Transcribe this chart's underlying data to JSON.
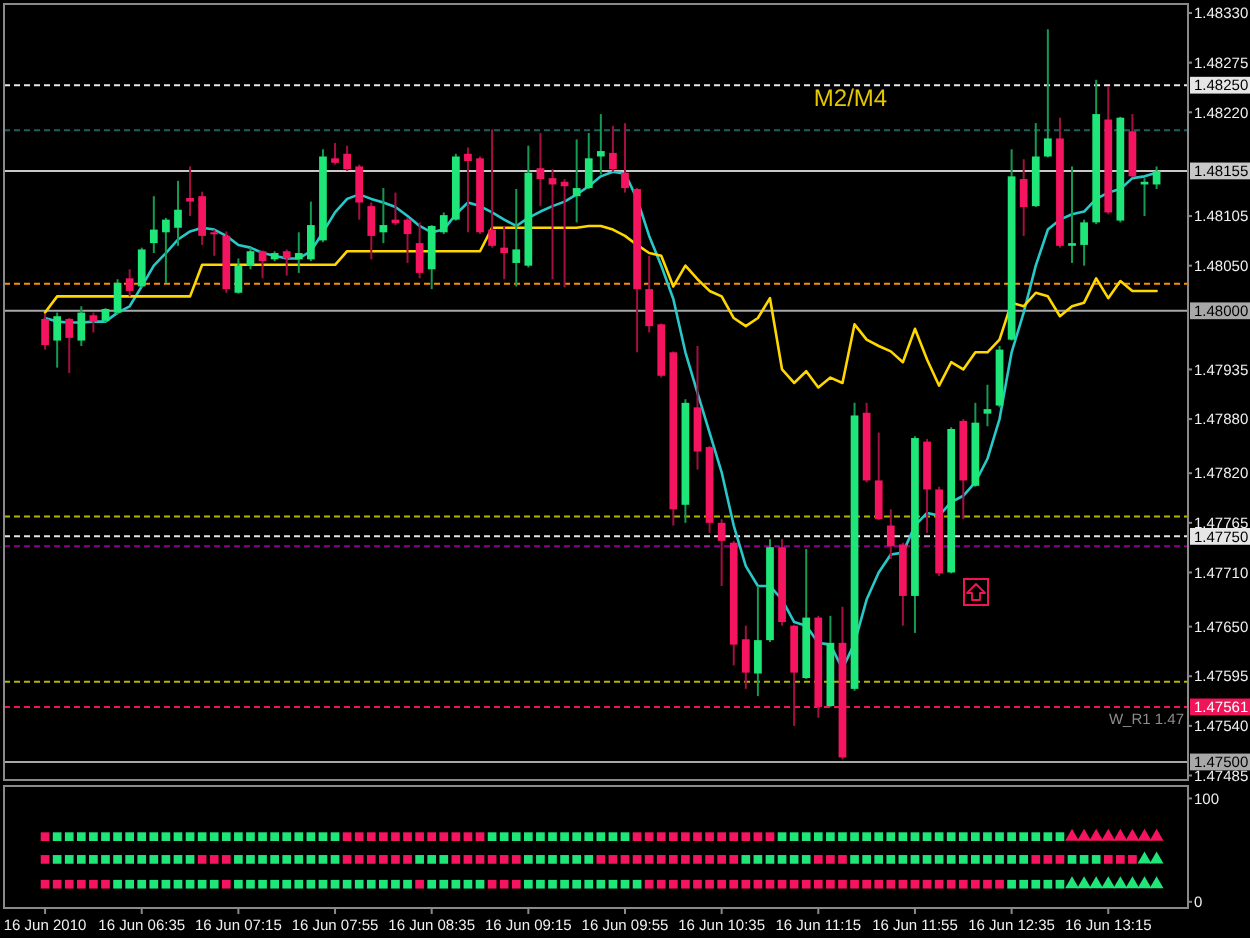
{
  "chart_data": [
    {
      "type": "candlestick",
      "annotations": [
        "M2/M4",
        {
          "text": "W_R1 1.47",
          "y": 1.47561
        }
      ],
      "x": [
        "2010-06-16T05:55",
        "2010-06-16T06:00",
        "2010-06-16T06:05",
        "2010-06-16T06:10",
        "2010-06-16T06:15",
        "2010-06-16T06:20",
        "2010-06-16T06:25",
        "2010-06-16T06:30",
        "2010-06-16T06:35",
        "2010-06-16T06:40",
        "2010-06-16T06:45",
        "2010-06-16T06:50",
        "2010-06-16T06:55",
        "2010-06-16T07:00",
        "2010-06-16T07:05",
        "2010-06-16T07:10",
        "2010-06-16T07:15",
        "2010-06-16T07:20",
        "2010-06-16T07:25",
        "2010-06-16T07:30",
        "2010-06-16T07:35",
        "2010-06-16T07:40",
        "2010-06-16T07:45",
        "2010-06-16T07:50",
        "2010-06-16T07:55",
        "2010-06-16T08:00",
        "2010-06-16T08:05",
        "2010-06-16T08:10",
        "2010-06-16T08:15",
        "2010-06-16T08:20",
        "2010-06-16T08:25",
        "2010-06-16T08:30",
        "2010-06-16T08:35",
        "2010-06-16T08:40",
        "2010-06-16T08:45",
        "2010-06-16T08:50",
        "2010-06-16T08:55",
        "2010-06-16T09:00",
        "2010-06-16T09:05",
        "2010-06-16T09:10",
        "2010-06-16T09:15",
        "2010-06-16T09:20",
        "2010-06-16T09:25",
        "2010-06-16T09:30",
        "2010-06-16T09:35",
        "2010-06-16T09:40",
        "2010-06-16T09:45",
        "2010-06-16T09:50",
        "2010-06-16T09:55",
        "2010-06-16T10:00",
        "2010-06-16T10:05",
        "2010-06-16T10:10",
        "2010-06-16T10:15",
        "2010-06-16T10:20",
        "2010-06-16T10:25",
        "2010-06-16T10:30",
        "2010-06-16T10:35",
        "2010-06-16T10:40",
        "2010-06-16T10:45",
        "2010-06-16T10:50",
        "2010-06-16T10:55",
        "2010-06-16T11:00",
        "2010-06-16T11:05",
        "2010-06-16T11:10",
        "2010-06-16T11:15",
        "2010-06-16T11:20",
        "2010-06-16T11:25",
        "2010-06-16T11:30",
        "2010-06-16T11:35",
        "2010-06-16T11:40",
        "2010-06-16T11:45",
        "2010-06-16T11:50",
        "2010-06-16T11:55",
        "2010-06-16T12:00",
        "2010-06-16T12:05",
        "2010-06-16T12:10",
        "2010-06-16T12:15",
        "2010-06-16T12:20",
        "2010-06-16T12:25",
        "2010-06-16T12:30",
        "2010-06-16T12:35",
        "2010-06-16T12:40",
        "2010-06-16T12:45",
        "2010-06-16T12:50",
        "2010-06-16T12:55",
        "2010-06-16T13:00",
        "2010-06-16T13:05",
        "2010-06-16T13:10",
        "2010-06-16T13:15",
        "2010-06-16T13:20",
        "2010-06-16T13:25",
        "2010-06-16T13:30",
        "2010-06-16T13:35"
      ],
      "ohlc": [
        [
          1.47991,
          1.47997,
          1.47957,
          1.47962
        ],
        [
          1.47967,
          1.47998,
          1.47937,
          1.47994
        ],
        [
          1.47991,
          1.47992,
          1.47931,
          1.4797
        ],
        [
          1.47967,
          1.48005,
          1.47961,
          1.47998
        ],
        [
          1.47995,
          1.47998,
          1.47976,
          1.47988
        ],
        [
          1.47989,
          1.48003,
          1.47987,
          1.48002
        ],
        [
          1.47998,
          1.48035,
          1.47996,
          1.48031
        ],
        [
          1.48036,
          1.48046,
          1.48016,
          1.48022
        ],
        [
          1.48027,
          1.4807,
          1.48026,
          1.48068
        ],
        [
          1.48075,
          1.48127,
          1.48064,
          1.4809
        ],
        [
          1.48087,
          1.48103,
          1.48031,
          1.48101
        ],
        [
          1.48092,
          1.48144,
          1.48072,
          1.48112
        ],
        [
          1.48125,
          1.4816,
          1.48105,
          1.48121
        ],
        [
          1.48127,
          1.48132,
          1.48073,
          1.48083
        ],
        [
          1.48087,
          1.4809,
          1.48061,
          1.48085
        ],
        [
          1.48083,
          1.48088,
          1.4802,
          1.48024
        ],
        [
          1.4802,
          1.48058,
          1.48019,
          1.4805
        ],
        [
          1.4805,
          1.4807,
          1.48046,
          1.48066
        ],
        [
          1.48066,
          1.48067,
          1.48036,
          1.48055
        ],
        [
          1.48057,
          1.48066,
          1.48055,
          1.48064
        ],
        [
          1.48066,
          1.48068,
          1.48039,
          1.48058
        ],
        [
          1.48057,
          1.48087,
          1.48042,
          1.48064
        ],
        [
          1.48057,
          1.48121,
          1.48055,
          1.48095
        ],
        [
          1.48078,
          1.48179,
          1.48076,
          1.48171
        ],
        [
          1.48169,
          1.48186,
          1.48162,
          1.48164
        ],
        [
          1.48174,
          1.48183,
          1.48155,
          1.48157
        ],
        [
          1.4816,
          1.48162,
          1.48101,
          1.4812
        ],
        [
          1.48116,
          1.4812,
          1.48057,
          1.48083
        ],
        [
          1.48087,
          1.48136,
          1.48075,
          1.48095
        ],
        [
          1.48101,
          1.48131,
          1.48095,
          1.48097
        ],
        [
          1.48101,
          1.48103,
          1.48053,
          1.48085
        ],
        [
          1.48075,
          1.48098,
          1.48036,
          1.48042
        ],
        [
          1.48046,
          1.48095,
          1.48024,
          1.48094
        ],
        [
          1.48087,
          1.48109,
          1.48085,
          1.48106
        ],
        [
          1.48101,
          1.48174,
          1.481,
          1.48171
        ],
        [
          1.48174,
          1.48181,
          1.48087,
          1.48166
        ],
        [
          1.48169,
          1.48171,
          1.48085,
          1.48087
        ],
        [
          1.4809,
          1.48201,
          1.4807,
          1.48072
        ],
        [
          1.4807,
          1.48094,
          1.48035,
          1.48064
        ],
        [
          1.48053,
          1.48135,
          1.48027,
          1.48068
        ],
        [
          1.4805,
          1.48183,
          1.48048,
          1.48153
        ],
        [
          1.48158,
          1.48197,
          1.48116,
          1.48146
        ],
        [
          1.48147,
          1.48157,
          1.48035,
          1.4814
        ],
        [
          1.48143,
          1.48146,
          1.48026,
          1.48138
        ],
        [
          1.48127,
          1.4819,
          1.48098,
          1.48136
        ],
        [
          1.48136,
          1.48197,
          1.48135,
          1.48169
        ],
        [
          1.48171,
          1.48218,
          1.48151,
          1.48177
        ],
        [
          1.48175,
          1.48205,
          1.48154,
          1.48157
        ],
        [
          1.48153,
          1.48208,
          1.48131,
          1.48136
        ],
        [
          1.48135,
          1.48136,
          1.47954,
          1.48024
        ],
        [
          1.48024,
          1.48061,
          1.47976,
          1.47983
        ],
        [
          1.47985,
          1.47986,
          1.47926,
          1.47928
        ],
        [
          1.47954,
          1.47955,
          1.47762,
          1.4778
        ],
        [
          1.47785,
          1.47902,
          1.47765,
          1.47898
        ],
        [
          1.47893,
          1.47961,
          1.47824,
          1.47844
        ],
        [
          1.47849,
          1.4785,
          1.47754,
          1.47765
        ],
        [
          1.47765,
          1.47769,
          1.47695,
          1.47745
        ],
        [
          1.47743,
          1.47745,
          1.47607,
          1.4763
        ],
        [
          1.47636,
          1.47651,
          1.47581,
          1.47599
        ],
        [
          1.47598,
          1.47695,
          1.47573,
          1.47635
        ],
        [
          1.47635,
          1.47747,
          1.47633,
          1.47738
        ],
        [
          1.47738,
          1.47747,
          1.47651,
          1.47655
        ],
        [
          1.47651,
          1.47652,
          1.4754,
          1.47599
        ],
        [
          1.47593,
          1.47736,
          1.47592,
          1.4766
        ],
        [
          1.4766,
          1.47662,
          1.47549,
          1.47561
        ],
        [
          1.47562,
          1.47662,
          1.47561,
          1.47632
        ],
        [
          1.47632,
          1.47672,
          1.47503,
          1.47505
        ],
        [
          1.47581,
          1.47898,
          1.47579,
          1.47884
        ],
        [
          1.47887,
          1.47898,
          1.4781,
          1.47812
        ],
        [
          1.47812,
          1.47865,
          1.47768,
          1.47769
        ],
        [
          1.47762,
          1.4778,
          1.47725,
          1.47739
        ],
        [
          1.47741,
          1.47743,
          1.47651,
          1.47684
        ],
        [
          1.47684,
          1.47861,
          1.47643,
          1.47859
        ],
        [
          1.47855,
          1.47858,
          1.47754,
          1.47802
        ],
        [
          1.47802,
          1.47805,
          1.47706,
          1.47709
        ],
        [
          1.4771,
          1.47871,
          1.47709,
          1.47869
        ],
        [
          1.47878,
          1.4788,
          1.47769,
          1.47812
        ],
        [
          1.47806,
          1.47898,
          1.47805,
          1.47876
        ],
        [
          1.47886,
          1.47918,
          1.47872,
          1.47891
        ],
        [
          1.47895,
          1.47961,
          1.47893,
          1.47957
        ],
        [
          1.47968,
          1.48179,
          1.47967,
          1.48149
        ],
        [
          1.48146,
          1.48168,
          1.48083,
          1.48115
        ],
        [
          1.48116,
          1.48208,
          1.48115,
          1.48171
        ],
        [
          1.48171,
          1.48312,
          1.4817,
          1.48191
        ],
        [
          1.48191,
          1.48214,
          1.4807,
          1.48072
        ],
        [
          1.48072,
          1.4816,
          1.48053,
          1.48075
        ],
        [
          1.48073,
          1.48101,
          1.4805,
          1.48098
        ],
        [
          1.48098,
          1.48256,
          1.48096,
          1.48218
        ],
        [
          1.48212,
          1.48249,
          1.48107,
          1.48109
        ],
        [
          1.481,
          1.48215,
          1.48098,
          1.48214
        ],
        [
          1.48199,
          1.48218,
          1.48148,
          1.48149
        ],
        [
          1.4814,
          1.48147,
          1.48105,
          1.48143
        ],
        [
          1.4814,
          1.4816,
          1.48135,
          1.48155
        ]
      ],
      "colors": [
        "#f51460",
        "#1ee678",
        "#f51460",
        "#1ee678",
        "#f51460",
        "#1ee678",
        "#1ee678",
        "#f51460",
        "#1ee678",
        "#1ee678",
        "#1ee678",
        "#1ee678",
        "#f51460",
        "#f51460",
        "#f51460",
        "#f51460",
        "#1ee678",
        "#1ee678",
        "#f51460",
        "#1ee678",
        "#f51460",
        "#1ee678",
        "#1ee678",
        "#1ee678",
        "#f51460",
        "#f51460",
        "#f51460",
        "#f51460",
        "#1ee678",
        "#f51460",
        "#f51460",
        "#f51460",
        "#1ee678",
        "#1ee678",
        "#1ee678",
        "#f51460",
        "#f51460",
        "#f51460",
        "#f51460",
        "#1ee678",
        "#1ee678",
        "#f51460",
        "#f51460",
        "#f51460",
        "#1ee678",
        "#1ee678",
        "#1ee678",
        "#f51460",
        "#f51460",
        "#f51460",
        "#f51460",
        "#f51460",
        "#f51460",
        "#1ee678",
        "#f51460",
        "#f51460",
        "#f51460",
        "#f51460",
        "#f51460",
        "#1ee678",
        "#1ee678",
        "#f51460",
        "#f51460",
        "#1ee678",
        "#f51460",
        "#1ee678",
        "#f51460",
        "#1ee678",
        "#f51460",
        "#f51460",
        "#f51460",
        "#f51460",
        "#1ee678",
        "#f51460",
        "#f51460",
        "#1ee678",
        "#f51460",
        "#1ee678",
        "#1ee678",
        "#1ee678",
        "#1ee678",
        "#f51460",
        "#1ee678",
        "#1ee678",
        "#f51460",
        "#1ee678",
        "#1ee678",
        "#1ee678",
        "#f51460",
        "#1ee678",
        "#f51460",
        "#1ee678",
        "#1ee678"
      ],
      "series": [
        {
          "type": "line",
          "color": "#28c8c8",
          "values": [
            1.47992,
            1.47988,
            1.47987,
            1.47987,
            1.47988,
            1.47988,
            1.47998,
            1.48005,
            1.48027,
            1.4805,
            1.48064,
            1.48079,
            1.48088,
            1.48092,
            1.4809,
            1.48083,
            1.48073,
            1.4807,
            1.48064,
            1.48061,
            1.48058,
            1.48058,
            1.48066,
            1.48087,
            1.48109,
            1.48124,
            1.48129,
            1.48124,
            1.4812,
            1.48115,
            1.48105,
            1.48094,
            1.48087,
            1.4809,
            1.48107,
            1.4812,
            1.48116,
            1.48109,
            1.48101,
            1.48094,
            1.48103,
            1.4811,
            1.48116,
            1.48121,
            1.48129,
            1.48138,
            1.48149,
            1.48154,
            1.48152,
            1.48124,
            1.48083,
            1.4805,
            1.48013,
            1.47954,
            1.47909,
            1.47865,
            1.47821,
            1.47762,
            1.47717,
            1.47695,
            1.47695,
            1.4768,
            1.47655,
            1.47651,
            1.47632,
            1.4763,
            1.47603,
            1.47632,
            1.4768,
            1.4771,
            1.4773,
            1.47732,
            1.47762,
            1.47776,
            1.47773,
            1.47788,
            1.47795,
            1.4781,
            1.47836,
            1.4788,
            1.47954,
            1.47998,
            1.4805,
            1.4809,
            1.48101,
            1.48107,
            1.4811,
            1.48124,
            1.48131,
            1.48135,
            1.48147,
            1.48149,
            1.48153
          ]
        },
        {
          "type": "line",
          "color": "#ffd700",
          "values": [
            1.47998,
            1.48016,
            1.48016,
            1.48016,
            1.48016,
            1.48016,
            1.48016,
            1.48016,
            1.48016,
            1.48016,
            1.48016,
            1.48016,
            1.48016,
            1.48051,
            1.48051,
            1.48051,
            1.48051,
            1.48051,
            1.48051,
            1.48051,
            1.48051,
            1.48051,
            1.48051,
            1.48051,
            1.48051,
            1.48066,
            1.48066,
            1.48066,
            1.48066,
            1.48066,
            1.48066,
            1.48066,
            1.48066,
            1.48066,
            1.48066,
            1.48066,
            1.48066,
            1.48092,
            1.48092,
            1.48092,
            1.48092,
            1.48092,
            1.48092,
            1.48092,
            1.48092,
            1.48094,
            1.48094,
            1.4809,
            1.48083,
            1.48073,
            1.48064,
            1.48061,
            1.48027,
            1.4805,
            1.48035,
            1.48022,
            1.48016,
            1.47992,
            1.47983,
            1.47992,
            1.48014,
            1.47935,
            1.4792,
            1.47933,
            1.47915,
            1.47926,
            1.4792,
            1.47985,
            1.47968,
            1.47961,
            1.47955,
            1.47943,
            1.4798,
            1.47946,
            1.47917,
            1.47943,
            1.47935,
            1.47954,
            1.47954,
            1.47968,
            1.48009,
            1.48005,
            1.4802,
            1.48016,
            1.47994,
            1.48005,
            1.48009,
            1.48036,
            1.48014,
            1.48033,
            1.48022,
            1.48022,
            1.48022
          ]
        }
      ],
      "xlim": [
        "2010-06-16T05:38",
        "2010-06-16T13:48"
      ],
      "ylim": [
        1.4748,
        1.4834
      ],
      "yticks": [
        {
          "value": 1.4833,
          "label": "1.48330"
        },
        1.48275,
        {
          "value": 1.4822,
          "label": "1.48220"
        },
        1.48105,
        {
          "value": 1.4805,
          "label": "1.48050"
        },
        1.47935,
        {
          "value": 1.4788,
          "label": "1.47880"
        },
        {
          "value": 1.4782,
          "label": "1.47820"
        },
        1.47765,
        {
          "value": 1.4771,
          "label": "1.47710"
        },
        {
          "value": 1.4765,
          "label": "1.47650"
        },
        1.47595,
        {
          "value": 1.4754,
          "label": "1.47540"
        },
        1.47485
      ],
      "tick_labels": "y",
      "ref_lines": [
        {
          "axis": "y",
          "value": 1.4825,
          "label": "1.48250",
          "color": "#e6e6e6",
          "line_style": "dashed"
        },
        {
          "axis": "y",
          "value": 1.482,
          "color": "#1f5f5f",
          "line_style": "dashed"
        },
        {
          "axis": "y",
          "value": 1.48155,
          "label": "1.48155",
          "color": "#c8c8c8",
          "line_style": "solid"
        },
        {
          "axis": "y",
          "value": 1.4803,
          "color": "#ff8c00",
          "line_style": "dashed"
        },
        {
          "axis": "y",
          "value": 1.48,
          "label": "1.48000",
          "color": "#a8a8a8",
          "line_style": "solid"
        },
        {
          "axis": "y",
          "value": 1.47772,
          "color": "#b4b400",
          "line_style": "dashed"
        },
        {
          "axis": "y",
          "value": 1.4775,
          "label": "1.47750",
          "color": "#e6e6e6",
          "line_style": "dashed"
        },
        {
          "axis": "y",
          "value": 1.47739,
          "color": "#8c008c",
          "line_style": "dashed"
        },
        {
          "axis": "y",
          "value": 1.47589,
          "color": "#b4b400",
          "line_style": "dashed"
        },
        {
          "axis": "y",
          "value": 1.47561,
          "label": "1.47561",
          "color": "#f0145a",
          "line_style": "dashed"
        },
        {
          "axis": "y",
          "value": 1.475,
          "label": "1.47500",
          "color": "#a8a8a8",
          "line_style": "solid"
        }
      ]
    },
    {
      "type": "scatter",
      "x": [
        "2010-06-16T05:55",
        "2010-06-16T06:00",
        "2010-06-16T06:05",
        "2010-06-16T06:10",
        "2010-06-16T06:15",
        "2010-06-16T06:20",
        "2010-06-16T06:25",
        "2010-06-16T06:30",
        "2010-06-16T06:35",
        "2010-06-16T06:40",
        "2010-06-16T06:45",
        "2010-06-16T06:50",
        "2010-06-16T06:55",
        "2010-06-16T07:00",
        "2010-06-16T07:05",
        "2010-06-16T07:10",
        "2010-06-16T07:15",
        "2010-06-16T07:20",
        "2010-06-16T07:25",
        "2010-06-16T07:30",
        "2010-06-16T07:35",
        "2010-06-16T07:40",
        "2010-06-16T07:45",
        "2010-06-16T07:50",
        "2010-06-16T07:55",
        "2010-06-16T08:00",
        "2010-06-16T08:05",
        "2010-06-16T08:10",
        "2010-06-16T08:15",
        "2010-06-16T08:20",
        "2010-06-16T08:25",
        "2010-06-16T08:30",
        "2010-06-16T08:35",
        "2010-06-16T08:40",
        "2010-06-16T08:45",
        "2010-06-16T08:50",
        "2010-06-16T08:55",
        "2010-06-16T09:00",
        "2010-06-16T09:05",
        "2010-06-16T09:10",
        "2010-06-16T09:15",
        "2010-06-16T09:20",
        "2010-06-16T09:25",
        "2010-06-16T09:30",
        "2010-06-16T09:35",
        "2010-06-16T09:40",
        "2010-06-16T09:45",
        "2010-06-16T09:50",
        "2010-06-16T09:55",
        "2010-06-16T10:00",
        "2010-06-16T10:05",
        "2010-06-16T10:10",
        "2010-06-16T10:15",
        "2010-06-16T10:20",
        "2010-06-16T10:25",
        "2010-06-16T10:30",
        "2010-06-16T10:35",
        "2010-06-16T10:40",
        "2010-06-16T10:45",
        "2010-06-16T10:50",
        "2010-06-16T10:55",
        "2010-06-16T11:00",
        "2010-06-16T11:05",
        "2010-06-16T11:10",
        "2010-06-16T11:15",
        "2010-06-16T11:20",
        "2010-06-16T11:25",
        "2010-06-16T11:30",
        "2010-06-16T11:35",
        "2010-06-16T11:40",
        "2010-06-16T11:45",
        "2010-06-16T11:50",
        "2010-06-16T11:55",
        "2010-06-16T12:00",
        "2010-06-16T12:05",
        "2010-06-16T12:10",
        "2010-06-16T12:15",
        "2010-06-16T12:20",
        "2010-06-16T12:25",
        "2010-06-16T12:30",
        "2010-06-16T12:35",
        "2010-06-16T12:40",
        "2010-06-16T12:45",
        "2010-06-16T12:50",
        "2010-06-16T12:55",
        "2010-06-16T13:00",
        "2010-06-16T13:05",
        "2010-06-16T13:10",
        "2010-06-16T13:15",
        "2010-06-16T13:20",
        "2010-06-16T13:25"
      ],
      "xlim": [
        "2010-06-16T05:38",
        "2010-06-16T13:48"
      ],
      "xticks": [
        {
          "value": "2010-06-16T05:55",
          "label": "16 Jun 2010"
        },
        {
          "value": "2010-06-16T06:35",
          "label": "16 Jun 06:35"
        },
        {
          "value": "2010-06-16T07:15",
          "label": "16 Jun 07:15"
        },
        {
          "value": "2010-06-16T07:55",
          "label": "16 Jun 07:55"
        },
        {
          "value": "2010-06-16T08:35",
          "label": "16 Jun 08:35"
        },
        {
          "value": "2010-06-16T09:15",
          "label": "16 Jun 09:15"
        },
        {
          "value": "2010-06-16T09:55",
          "label": "16 Jun 09:55"
        },
        {
          "value": "2010-06-16T10:35",
          "label": "16 Jun 10:35"
        },
        {
          "value": "2010-06-16T11:15",
          "label": "16 Jun 11:15"
        },
        {
          "value": "2010-06-16T11:55",
          "label": "16 Jun 11:55"
        },
        {
          "value": "2010-06-16T12:35",
          "label": "16 Jun 12:35"
        },
        {
          "value": "2010-06-16T13:15",
          "label": "16 Jun 13:15"
        }
      ],
      "ylim": [
        -6,
        112
      ],
      "yticks": [
        0,
        100
      ],
      "marker": "square",
      "series": [
        {
          "values": [
            63,
            63,
            63,
            63,
            63,
            63,
            63,
            63,
            63,
            63,
            63,
            63,
            63,
            63,
            63,
            63,
            63,
            63,
            63,
            63,
            63,
            63,
            63,
            63,
            63,
            63,
            63,
            63,
            63,
            63,
            63,
            63,
            63,
            63,
            63,
            63,
            63,
            63,
            63,
            63,
            63,
            63,
            63,
            63,
            63,
            63,
            63,
            63,
            63,
            63,
            63,
            63,
            63,
            63,
            63,
            63,
            63,
            63,
            63,
            63,
            63,
            63,
            63,
            63,
            63,
            63,
            63,
            63,
            63,
            63,
            63,
            63,
            63,
            63,
            63,
            63,
            63,
            63,
            63,
            63,
            63,
            63,
            63,
            63,
            63,
            null,
            null,
            null,
            null,
            null,
            null
          ],
          "colors": [
            "#f51460",
            "#1ee678",
            "#1ee678",
            "#1ee678",
            "#1ee678",
            "#1ee678",
            "#1ee678",
            "#1ee678",
            "#1ee678",
            "#1ee678",
            "#1ee678",
            "#1ee678",
            "#1ee678",
            "#1ee678",
            "#1ee678",
            "#1ee678",
            "#1ee678",
            "#1ee678",
            "#1ee678",
            "#1ee678",
            "#1ee678",
            "#1ee678",
            "#1ee678",
            "#1ee678",
            "#1ee678",
            "#f51460",
            "#f51460",
            "#f51460",
            "#f51460",
            "#f51460",
            "#f51460",
            "#f51460",
            "#f51460",
            "#f51460",
            "#f51460",
            "#f51460",
            "#f51460",
            "#1ee678",
            "#1ee678",
            "#1ee678",
            "#1ee678",
            "#1ee678",
            "#1ee678",
            "#1ee678",
            "#1ee678",
            "#1ee678",
            "#1ee678",
            "#1ee678",
            "#1ee678",
            "#f51460",
            "#f51460",
            "#f51460",
            "#f51460",
            "#f51460",
            "#f51460",
            "#f51460",
            "#f51460",
            "#f51460",
            "#f51460",
            "#f51460",
            "#f51460",
            "#1ee678",
            "#1ee678",
            "#1ee678",
            "#1ee678",
            "#1ee678",
            "#1ee678",
            "#1ee678",
            "#1ee678",
            "#1ee678",
            "#1ee678",
            "#1ee678",
            "#1ee678",
            "#1ee678",
            "#1ee678",
            "#1ee678",
            "#1ee678",
            "#1ee678",
            "#1ee678",
            "#1ee678",
            "#1ee678",
            "#1ee678",
            "#1ee678",
            "#1ee678",
            "#1ee678",
            null,
            null,
            null,
            null,
            null,
            null
          ]
        },
        {
          "marker": "triangle",
          "color": "#f51460",
          "x": [
            "2010-06-16T13:00",
            "2010-06-16T13:05",
            "2010-06-16T13:10",
            "2010-06-16T13:15",
            "2010-06-16T13:20",
            "2010-06-16T13:25",
            "2010-06-16T13:30",
            "2010-06-16T13:35"
          ],
          "values": [
            63,
            63,
            63,
            63,
            63,
            63,
            63,
            63
          ]
        },
        {
          "values": [
            41,
            41,
            41,
            41,
            41,
            41,
            41,
            41,
            41,
            41,
            41,
            41,
            41,
            41,
            41,
            41,
            41,
            41,
            41,
            41,
            41,
            41,
            41,
            41,
            41,
            41,
            41,
            41,
            41,
            41,
            41,
            41,
            41,
            41,
            41,
            41,
            41,
            41,
            41,
            41,
            41,
            41,
            41,
            41,
            41,
            41,
            41,
            41,
            41,
            41,
            41,
            41,
            41,
            41,
            41,
            41,
            41,
            41,
            41,
            41,
            41,
            41,
            41,
            41,
            41,
            41,
            41,
            41,
            41,
            41,
            41,
            41,
            41,
            41,
            41,
            41,
            41,
            41,
            41,
            41,
            41,
            41,
            41,
            41,
            41,
            41,
            41,
            41,
            41,
            41,
            41
          ],
          "colors": [
            "#f51460",
            "#1ee678",
            "#1ee678",
            "#1ee678",
            "#1ee678",
            "#1ee678",
            "#1ee678",
            "#1ee678",
            "#1ee678",
            "#1ee678",
            "#1ee678",
            "#1ee678",
            "#1ee678",
            "#f51460",
            "#f51460",
            "#f51460",
            "#1ee678",
            "#1ee678",
            "#1ee678",
            "#1ee678",
            "#1ee678",
            "#1ee678",
            "#1ee678",
            "#1ee678",
            "#1ee678",
            "#f51460",
            "#f51460",
            "#f51460",
            "#f51460",
            "#f51460",
            "#f51460",
            "#1ee678",
            "#1ee678",
            "#1ee678",
            "#f51460",
            "#f51460",
            "#f51460",
            "#f51460",
            "#f51460",
            "#f51460",
            "#1ee678",
            "#1ee678",
            "#1ee678",
            "#1ee678",
            "#1ee678",
            "#1ee678",
            "#f51460",
            "#f51460",
            "#f51460",
            "#f51460",
            "#f51460",
            "#f51460",
            "#f51460",
            "#f51460",
            "#f51460",
            "#f51460",
            "#f51460",
            "#f51460",
            "#1ee678",
            "#1ee678",
            "#1ee678",
            "#1ee678",
            "#1ee678",
            "#1ee678",
            "#f51460",
            "#f51460",
            "#f51460",
            "#1ee678",
            "#1ee678",
            "#1ee678",
            "#1ee678",
            "#1ee678",
            "#1ee678",
            "#1ee678",
            "#1ee678",
            "#1ee678",
            "#1ee678",
            "#1ee678",
            "#1ee678",
            "#1ee678",
            "#1ee678",
            "#1ee678",
            "#f51460",
            "#f51460",
            "#f51460",
            "#1ee678",
            "#1ee678",
            "#1ee678",
            "#f51460",
            "#f51460",
            "#f51460"
          ]
        },
        {
          "marker": "triangle",
          "color": "#1ee678",
          "x": [
            "2010-06-16T13:30",
            "2010-06-16T13:35"
          ],
          "values": [
            41,
            41
          ]
        },
        {
          "values": [
            17,
            17,
            17,
            17,
            17,
            17,
            17,
            17,
            17,
            17,
            17,
            17,
            17,
            17,
            17,
            17,
            17,
            17,
            17,
            17,
            17,
            17,
            17,
            17,
            17,
            17,
            17,
            17,
            17,
            17,
            17,
            17,
            17,
            17,
            17,
            17,
            17,
            17,
            17,
            17,
            17,
            17,
            17,
            17,
            17,
            17,
            17,
            17,
            17,
            17,
            17,
            17,
            17,
            17,
            17,
            17,
            17,
            17,
            17,
            17,
            17,
            17,
            17,
            17,
            17,
            17,
            17,
            17,
            17,
            17,
            17,
            17,
            17,
            17,
            17,
            17,
            17,
            17,
            17,
            17,
            17,
            17,
            17,
            17,
            17,
            null,
            null,
            null,
            null,
            null,
            null
          ],
          "colors": [
            "#f51460",
            "#f51460",
            "#f51460",
            "#f51460",
            "#f51460",
            "#f51460",
            "#1ee678",
            "#1ee678",
            "#1ee678",
            "#1ee678",
            "#1ee678",
            "#1ee678",
            "#1ee678",
            "#1ee678",
            "#1ee678",
            "#f51460",
            "#1ee678",
            "#1ee678",
            "#1ee678",
            "#1ee678",
            "#1ee678",
            "#1ee678",
            "#1ee678",
            "#1ee678",
            "#1ee678",
            "#1ee678",
            "#1ee678",
            "#1ee678",
            "#1ee678",
            "#1ee678",
            "#1ee678",
            "#f51460",
            "#1ee678",
            "#1ee678",
            "#1ee678",
            "#1ee678",
            "#1ee678",
            "#f51460",
            "#f51460",
            "#f51460",
            "#1ee678",
            "#1ee678",
            "#1ee678",
            "#1ee678",
            "#1ee678",
            "#1ee678",
            "#1ee678",
            "#1ee678",
            "#1ee678",
            "#1ee678",
            "#f51460",
            "#f51460",
            "#f51460",
            "#f51460",
            "#f51460",
            "#f51460",
            "#f51460",
            "#f51460",
            "#f51460",
            "#f51460",
            "#f51460",
            "#f51460",
            "#f51460",
            "#f51460",
            "#f51460",
            "#f51460",
            "#f51460",
            "#f51460",
            "#f51460",
            "#f51460",
            "#f51460",
            "#f51460",
            "#f51460",
            "#f51460",
            "#f51460",
            "#f51460",
            "#f51460",
            "#f51460",
            "#f51460",
            "#f51460",
            "#1ee678",
            "#1ee678",
            "#1ee678",
            "#1ee678",
            "#1ee678",
            null,
            null,
            null,
            null,
            null,
            null
          ]
        },
        {
          "marker": "triangle",
          "color": "#1ee678",
          "x": [
            "2010-06-16T13:00",
            "2010-06-16T13:05",
            "2010-06-16T13:10",
            "2010-06-16T13:15",
            "2010-06-16T13:20",
            "2010-06-16T13:25",
            "2010-06-16T13:30",
            "2010-06-16T13:35"
          ],
          "values": [
            17,
            17,
            17,
            17,
            17,
            17,
            17,
            17
          ]
        }
      ]
    }
  ]
}
